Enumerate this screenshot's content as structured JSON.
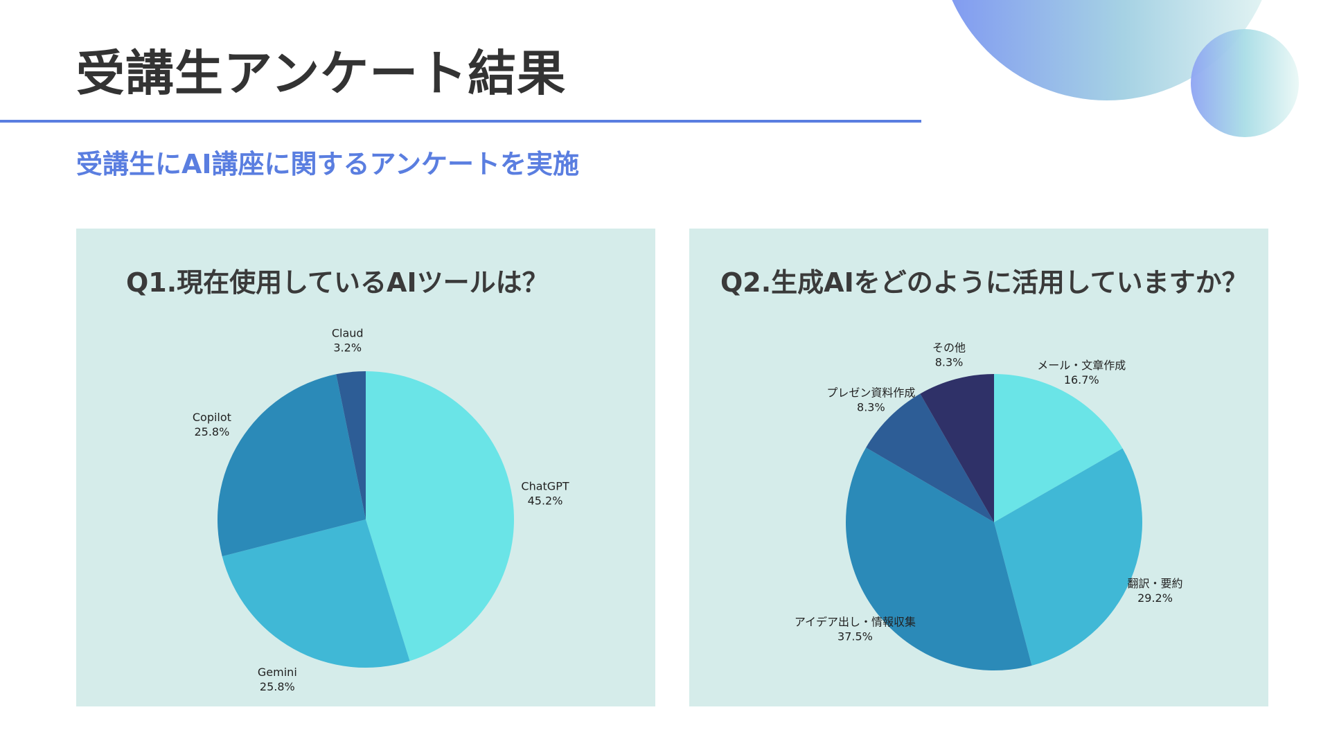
{
  "title": "受講生アンケート結果",
  "subtitle": "受講生にAI講座に関するアンケートを実施",
  "colors": {
    "accent": "#5a7ee0",
    "panel_bg": "#d5ecea",
    "title_text": "#333333"
  },
  "chart_data": [
    {
      "type": "pie",
      "title": "Q1.現在使用しているAIツールは？",
      "slices": [
        {
          "label": "ChatGPT",
          "value": 45.2,
          "display": "45.2%",
          "color": "#6ae4e7"
        },
        {
          "label": "Gemini",
          "value": 25.8,
          "display": "25.8%",
          "color": "#40b8d6"
        },
        {
          "label": "Copilot",
          "value": 25.8,
          "display": "25.8%",
          "color": "#2b8ab8"
        },
        {
          "label": "Claud",
          "value": 3.2,
          "display": "3.2%",
          "color": "#2d5d96"
        }
      ],
      "start": "top",
      "direction": "clockwise"
    },
    {
      "type": "pie",
      "title": "Q2.生成AIをどのように活用していますか？",
      "slices": [
        {
          "label": "メール・文章作成",
          "value": 16.7,
          "display": "16.7%",
          "color": "#6ae4e7"
        },
        {
          "label": "翻訳・要約",
          "value": 29.2,
          "display": "29.2%",
          "color": "#40b8d6"
        },
        {
          "label": "アイデア出し・情報収集",
          "value": 37.5,
          "display": "37.5%",
          "color": "#2b8ab8"
        },
        {
          "label": "プレゼン資料作成",
          "value": 8.3,
          "display": "8.3%",
          "color": "#2d5d96"
        },
        {
          "label": "その他",
          "value": 8.3,
          "display": "8.3%",
          "color": "#2f3168"
        }
      ],
      "start": "top",
      "direction": "clockwise"
    }
  ]
}
